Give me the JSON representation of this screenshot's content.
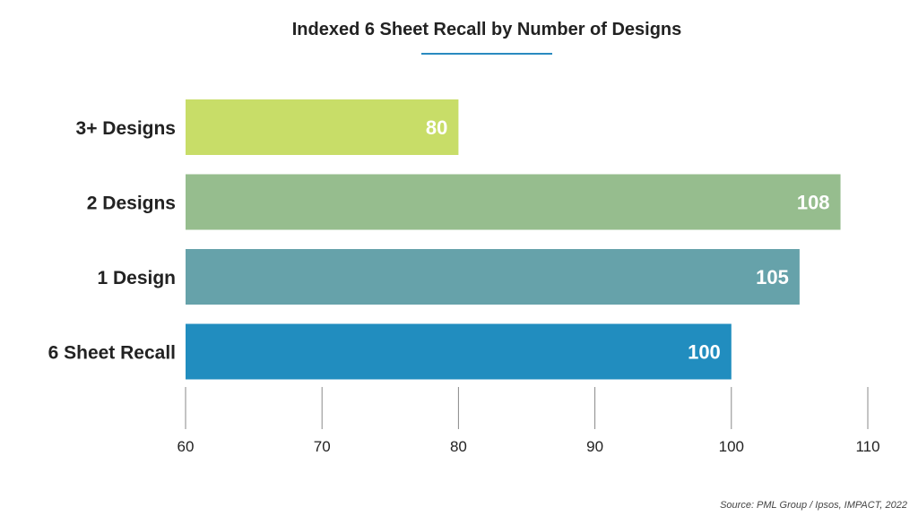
{
  "chart_data": {
    "type": "bar",
    "orientation": "horizontal",
    "title": "Indexed 6 Sheet Recall by Number of Designs",
    "categories": [
      "3+ Designs",
      "2 Designs",
      "1 Design",
      "6 Sheet Recall"
    ],
    "values": [
      80,
      108,
      105,
      100
    ],
    "data_labels": [
      "80",
      "108",
      "105",
      "100"
    ],
    "colors": [
      "#c8dd68",
      "#96bd8e",
      "#66a2aa",
      "#218dbf"
    ],
    "xlim": [
      60,
      110
    ],
    "xticks": [
      "60",
      "70",
      "80",
      "90",
      "100",
      "110"
    ],
    "grid": false,
    "legend": "none"
  },
  "source": "Source: PML Group / Ipsos, IMPACT, 2022",
  "colors": {
    "title_rule": "#2a8ac0",
    "axis_ticks": "#888888"
  }
}
